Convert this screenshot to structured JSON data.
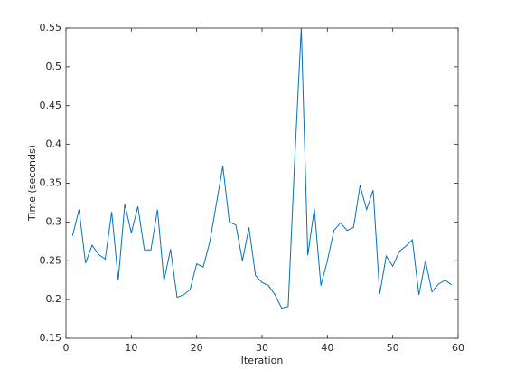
{
  "chart_data": {
    "type": "line",
    "xlabel": "Iteration",
    "ylabel": "Time (seconds)",
    "x": [
      1,
      2,
      3,
      4,
      5,
      6,
      7,
      8,
      9,
      10,
      11,
      12,
      13,
      14,
      15,
      16,
      17,
      18,
      19,
      20,
      21,
      22,
      23,
      24,
      25,
      26,
      27,
      28,
      29,
      30,
      31,
      32,
      33,
      34,
      35,
      36,
      37,
      38,
      39,
      40,
      41,
      42,
      43,
      44,
      45,
      46,
      47,
      48,
      49,
      50,
      51,
      52,
      53,
      54,
      55,
      56,
      57,
      58,
      59
    ],
    "series": [
      {
        "color": "#0072bd",
        "values": [
          0.282,
          0.316,
          0.247,
          0.27,
          0.258,
          0.252,
          0.313,
          0.225,
          0.323,
          0.286,
          0.32,
          0.264,
          0.264,
          0.316,
          0.224,
          0.265,
          0.203,
          0.206,
          0.213,
          0.246,
          0.242,
          0.274,
          0.323,
          0.372,
          0.3,
          0.296,
          0.25,
          0.293,
          0.231,
          0.222,
          0.218,
          0.206,
          0.189,
          0.191,
          0.38,
          0.55,
          0.257,
          0.317,
          0.218,
          0.25,
          0.289,
          0.299,
          0.289,
          0.293,
          0.347,
          0.316,
          0.341,
          0.207,
          0.256,
          0.243,
          0.262,
          0.269,
          0.277,
          0.206,
          0.25,
          0.21,
          0.22,
          0.225,
          0.219
        ]
      }
    ],
    "xlim": [
      0,
      60
    ],
    "xticks": [
      0,
      10,
      20,
      30,
      40,
      50,
      60
    ],
    "ylim": [
      0.15,
      0.55
    ],
    "yticks": [
      0.15,
      0.2,
      0.25,
      0.3,
      0.35,
      0.4,
      0.45,
      0.5,
      0.55
    ],
    "grid": false
  }
}
